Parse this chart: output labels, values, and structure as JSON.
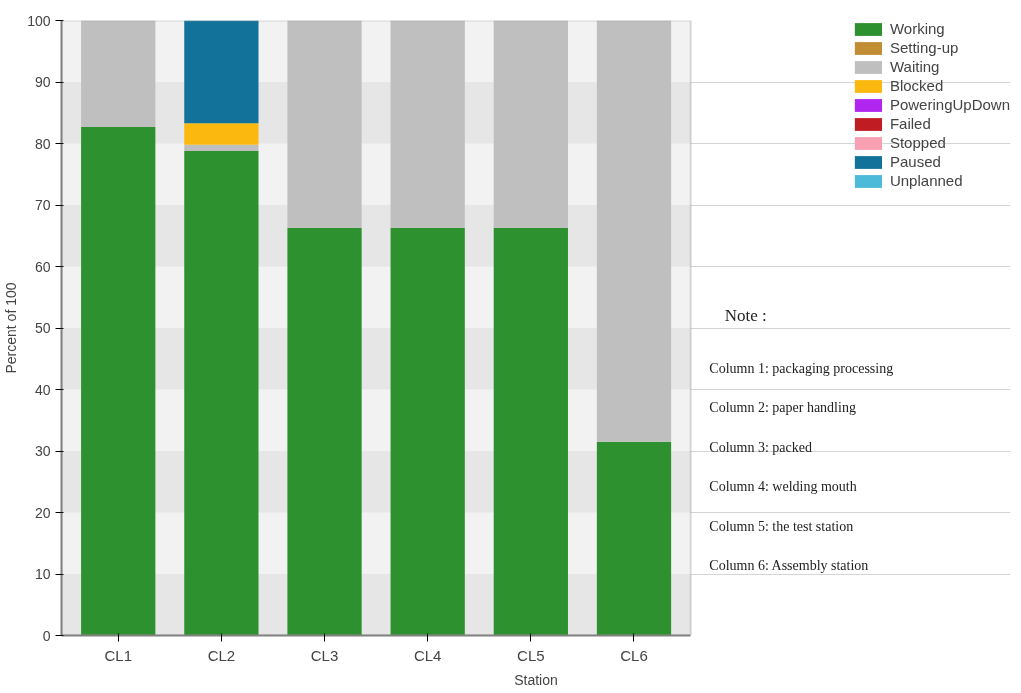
{
  "chart_data": {
    "type": "bar",
    "stacked": true,
    "xlabel": "Station",
    "ylabel": "Percent of 100",
    "categories": [
      "CL1",
      "CL2",
      "CL3",
      "CL4",
      "CL5",
      "CL6"
    ],
    "series": [
      {
        "name": "Working",
        "color": "#2e9130",
        "values": [
          82.7,
          78.8,
          66.3,
          66.3,
          66.3,
          31.5
        ]
      },
      {
        "name": "Setting-up",
        "color": "#c08c34",
        "values": [
          0,
          0,
          0,
          0,
          0,
          0
        ]
      },
      {
        "name": "Waiting",
        "color": "#bfbfbf",
        "values": [
          17.3,
          1,
          33.7,
          33.7,
          33.7,
          68.5
        ]
      },
      {
        "name": "Blocked",
        "color": "#fbb80f",
        "values": [
          0,
          3.5,
          0,
          0,
          0,
          0
        ]
      },
      {
        "name": "PoweringUpDown",
        "color": "#b026ee",
        "values": [
          0,
          0,
          0,
          0,
          0,
          0
        ]
      },
      {
        "name": "Failed",
        "color": "#c01d22",
        "values": [
          0,
          0,
          0,
          0,
          0,
          0
        ]
      },
      {
        "name": "Stopped",
        "color": "#f8a0b1",
        "values": [
          0,
          0,
          0,
          0,
          0,
          0
        ]
      },
      {
        "name": "Paused",
        "color": "#13729a",
        "values": [
          0,
          16.7,
          0,
          0,
          0,
          0
        ]
      },
      {
        "name": "Unplanned",
        "color": "#4cbad8",
        "values": [
          0,
          0,
          0,
          0,
          0,
          0
        ]
      }
    ],
    "ylim": [
      0,
      100
    ],
    "yticks": [
      0,
      10,
      20,
      30,
      40,
      50,
      60,
      70,
      80,
      90,
      100
    ],
    "grid": "y",
    "legend": "top right",
    "annotations": [
      "Note :",
      "Column 1: packaging processing",
      "Column 2: paper handling",
      "Column 3: packed",
      "Column 4: welding mouth",
      "Column 5: the test station",
      "Column 6: Assembly station"
    ]
  }
}
